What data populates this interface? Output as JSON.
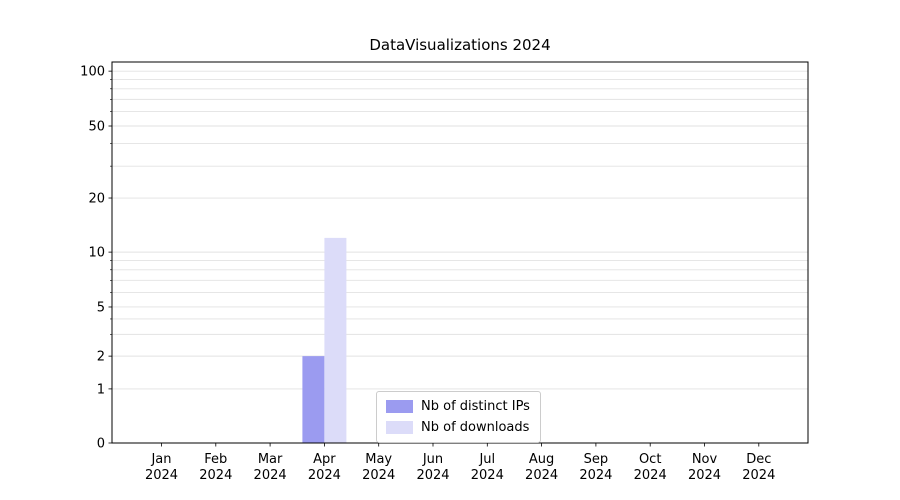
{
  "chart_data": {
    "type": "bar",
    "title": "DataVisualizations 2024",
    "categories": [
      "Jan",
      "Feb",
      "Mar",
      "Apr",
      "May",
      "Jun",
      "Jul",
      "Aug",
      "Sep",
      "Oct",
      "Nov",
      "Dec"
    ],
    "year": "2024",
    "series": [
      {
        "name": "Nb of distinct IPs",
        "color": "#9b9bf0",
        "values": [
          0,
          0,
          0,
          2,
          0,
          0,
          0,
          0,
          0,
          0,
          0,
          0
        ]
      },
      {
        "name": "Nb of downloads",
        "color": "#dcdcf9",
        "values": [
          0,
          0,
          0,
          12,
          0,
          0,
          0,
          0,
          0,
          0,
          0,
          0
        ]
      }
    ],
    "yscale": "symlog",
    "yticks": [
      0,
      1,
      2,
      5,
      10,
      20,
      50,
      100
    ],
    "ylim": [
      0,
      110
    ],
    "grid": "horizontal-minor",
    "legend_position": "lower center",
    "background": "#ffffff"
  }
}
